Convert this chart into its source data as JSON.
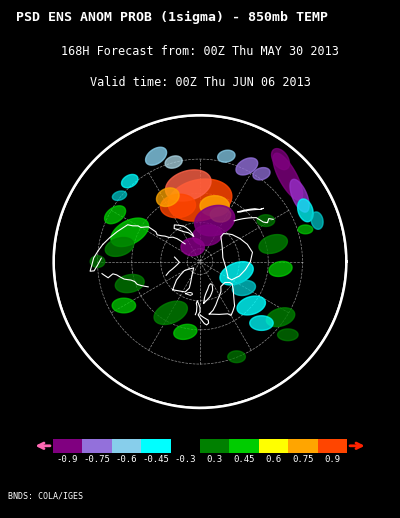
{
  "title_line1": "PSD ENS ANOM PROB (1sigma) - 850mb TEMP",
  "title_line2": "168H Forecast from: 00Z Thu MAY 30 2013",
  "title_line3": "Valid time: 00Z Thu JUN 06 2013",
  "credit": "BNDS: COLA/IGES",
  "background_color": "#000000",
  "colorbar_labels": [
    "-0.9",
    "-0.75",
    "-0.6",
    "-0.45",
    "-0.3",
    "0.3",
    "0.45",
    "0.6",
    "0.75",
    "0.9"
  ],
  "colorbar_colors": [
    "#800080",
    "#9370DB",
    "#87CEEB",
    "#00FFFF",
    "#000000",
    "#008000",
    "#00CC00",
    "#FFFF00",
    "#FFA500",
    "#FF4500"
  ],
  "title_color": "#FFFFFF"
}
